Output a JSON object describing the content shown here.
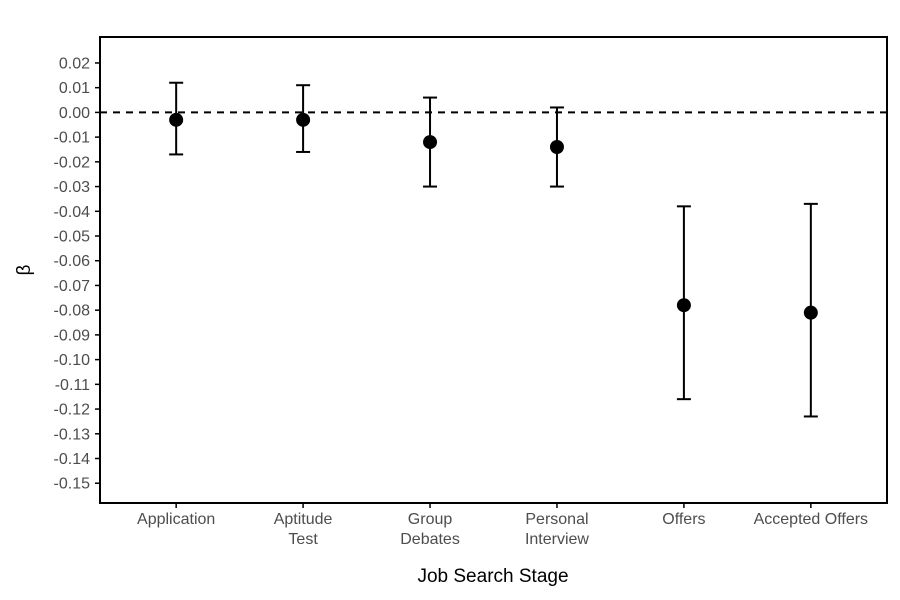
{
  "chart_data": {
    "type": "scatter",
    "subtype": "point-estimates-with-error-bars",
    "title": "",
    "xlabel": "Job Search Stage",
    "ylabel": "β",
    "categories": [
      "Application",
      "Aptitude Test",
      "Group Debates",
      "Personal Interview",
      "Offers",
      "Accepted Offers"
    ],
    "category_label_lines": [
      [
        "Application"
      ],
      [
        "Aptitude",
        "Test"
      ],
      [
        "Group",
        "Debates"
      ],
      [
        "Personal",
        "Interview"
      ],
      [
        "Offers"
      ],
      [
        "Accepted Offers"
      ]
    ],
    "points": [
      {
        "category": "Application",
        "estimate": -0.003,
        "ci_low": -0.017,
        "ci_high": 0.012
      },
      {
        "category": "Aptitude Test",
        "estimate": -0.003,
        "ci_low": -0.016,
        "ci_high": 0.011
      },
      {
        "category": "Group Debates",
        "estimate": -0.012,
        "ci_low": -0.03,
        "ci_high": 0.006
      },
      {
        "category": "Personal Interview",
        "estimate": -0.014,
        "ci_low": -0.03,
        "ci_high": 0.002
      },
      {
        "category": "Offers",
        "estimate": -0.078,
        "ci_low": -0.116,
        "ci_high": -0.038
      },
      {
        "category": "Accepted Offers",
        "estimate": -0.081,
        "ci_low": -0.123,
        "ci_high": -0.037
      }
    ],
    "y_ticks": [
      0.02,
      0.01,
      0.0,
      -0.01,
      -0.02,
      -0.03,
      -0.04,
      -0.05,
      -0.06,
      -0.07,
      -0.08,
      -0.09,
      -0.1,
      -0.11,
      -0.12,
      -0.13,
      -0.14,
      -0.15
    ],
    "ylim": [
      -0.158,
      0.0305
    ],
    "reference_line": {
      "y": 0.0,
      "style": "dashed"
    },
    "grid": false,
    "legend_position": "none",
    "colors": {
      "point": "#000000",
      "error_bar": "#000000",
      "reference_line": "#000000",
      "panel_border": "#000000",
      "tick_label": "#4d4d4d",
      "axis_title": "#000000",
      "background": "#ffffff"
    }
  }
}
